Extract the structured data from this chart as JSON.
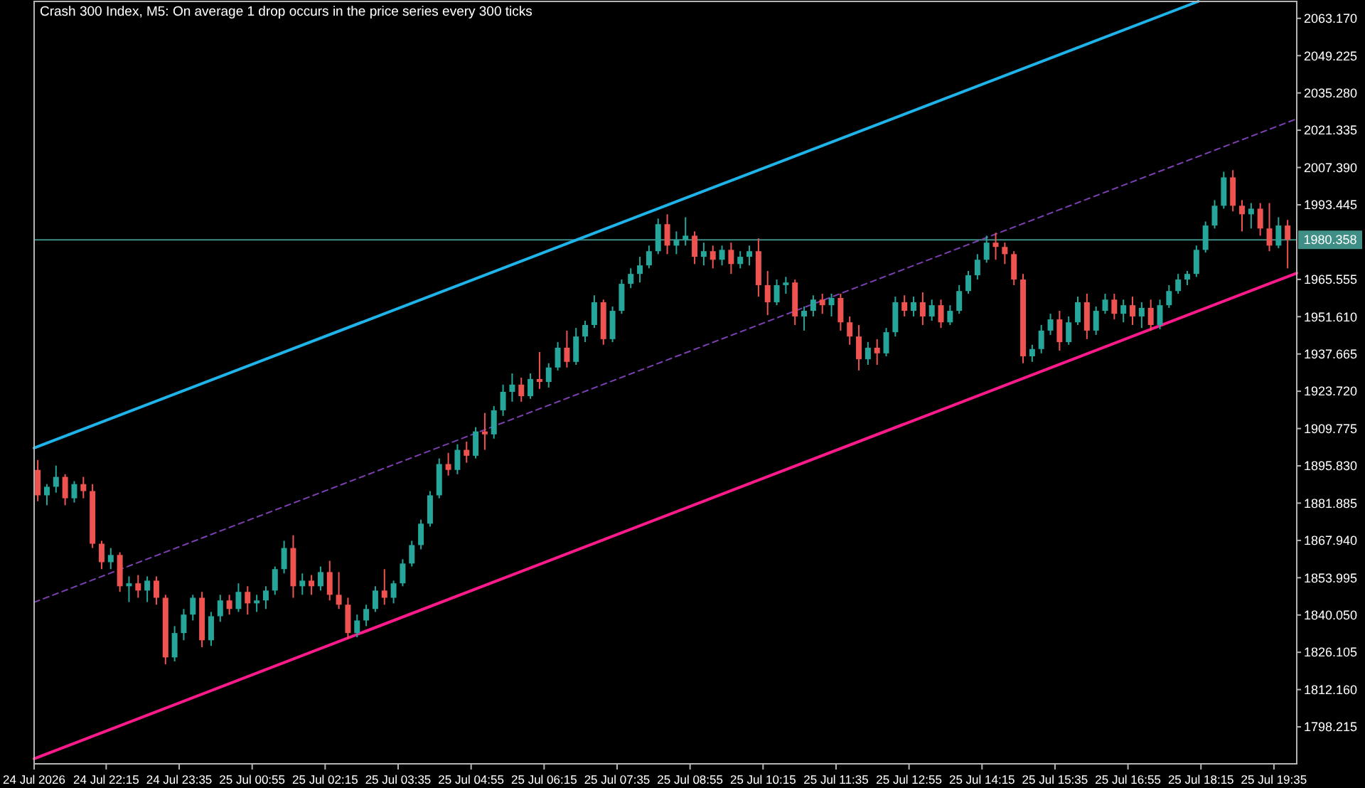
{
  "chart_data": {
    "type": "candlestick",
    "title": "Crash 300 Index, M5: On average 1 drop occurs in the price series every 300 ticks",
    "x": [
      "2026-07-24T21:00",
      "2026-07-24T21:10",
      "2026-07-24T21:20",
      "2026-07-24T21:30",
      "2026-07-24T21:40",
      "2026-07-24T21:50",
      "2026-07-24T22:00",
      "2026-07-24T22:10",
      "2026-07-24T22:20",
      "2026-07-24T22:30",
      "2026-07-24T22:40",
      "2026-07-24T22:50",
      "2026-07-24T23:00",
      "2026-07-24T23:10",
      "2026-07-24T23:20",
      "2026-07-24T23:30",
      "2026-07-24T23:40",
      "2026-07-24T23:50",
      "2026-07-25T00:00",
      "2026-07-25T00:10",
      "2026-07-25T00:20",
      "2026-07-25T00:30",
      "2026-07-25T00:40",
      "2026-07-25T00:50",
      "2026-07-25T01:00",
      "2026-07-25T01:10",
      "2026-07-25T01:20",
      "2026-07-25T01:30",
      "2026-07-25T01:40",
      "2026-07-25T01:50",
      "2026-07-25T02:00",
      "2026-07-25T02:10",
      "2026-07-25T02:20",
      "2026-07-25T02:30",
      "2026-07-25T02:40",
      "2026-07-25T02:50",
      "2026-07-25T03:00",
      "2026-07-25T03:10",
      "2026-07-25T03:20",
      "2026-07-25T03:30",
      "2026-07-25T03:40",
      "2026-07-25T03:50",
      "2026-07-25T04:00",
      "2026-07-25T04:10",
      "2026-07-25T04:20",
      "2026-07-25T04:30",
      "2026-07-25T04:40",
      "2026-07-25T04:50",
      "2026-07-25T05:00",
      "2026-07-25T05:10",
      "2026-07-25T05:20",
      "2026-07-25T05:30",
      "2026-07-25T05:40",
      "2026-07-25T05:50",
      "2026-07-25T06:00",
      "2026-07-25T06:10",
      "2026-07-25T06:20",
      "2026-07-25T06:30",
      "2026-07-25T06:40",
      "2026-07-25T06:50",
      "2026-07-25T07:00",
      "2026-07-25T07:10",
      "2026-07-25T07:20",
      "2026-07-25T07:30",
      "2026-07-25T07:40",
      "2026-07-25T07:50",
      "2026-07-25T08:00",
      "2026-07-25T08:10",
      "2026-07-25T08:20",
      "2026-07-25T08:30",
      "2026-07-25T08:40",
      "2026-07-25T08:50",
      "2026-07-25T09:00",
      "2026-07-25T09:10",
      "2026-07-25T09:20",
      "2026-07-25T09:30",
      "2026-07-25T09:40",
      "2026-07-25T09:50",
      "2026-07-25T10:00",
      "2026-07-25T10:10",
      "2026-07-25T10:20",
      "2026-07-25T10:30",
      "2026-07-25T10:40",
      "2026-07-25T10:50",
      "2026-07-25T11:00",
      "2026-07-25T11:10",
      "2026-07-25T11:20",
      "2026-07-25T11:30",
      "2026-07-25T11:40",
      "2026-07-25T11:50",
      "2026-07-25T12:00",
      "2026-07-25T12:10",
      "2026-07-25T12:20",
      "2026-07-25T12:30",
      "2026-07-25T12:40",
      "2026-07-25T12:50",
      "2026-07-25T13:00",
      "2026-07-25T13:10",
      "2026-07-25T13:20",
      "2026-07-25T13:30",
      "2026-07-25T13:40",
      "2026-07-25T13:50",
      "2026-07-25T14:00",
      "2026-07-25T14:10",
      "2026-07-25T14:20",
      "2026-07-25T14:30",
      "2026-07-25T14:40",
      "2026-07-25T14:50",
      "2026-07-25T15:00",
      "2026-07-25T15:10",
      "2026-07-25T15:20",
      "2026-07-25T15:30",
      "2026-07-25T15:40",
      "2026-07-25T15:50",
      "2026-07-25T16:00",
      "2026-07-25T16:10",
      "2026-07-25T16:20",
      "2026-07-25T16:30",
      "2026-07-25T16:40",
      "2026-07-25T16:50",
      "2026-07-25T17:00",
      "2026-07-25T17:10",
      "2026-07-25T17:20",
      "2026-07-25T17:30",
      "2026-07-25T17:40",
      "2026-07-25T17:50",
      "2026-07-25T18:00",
      "2026-07-25T18:10",
      "2026-07-25T18:20",
      "2026-07-25T18:30",
      "2026-07-25T18:40",
      "2026-07-25T18:50",
      "2026-07-25T19:00",
      "2026-07-25T19:10",
      "2026-07-25T19:20",
      "2026-07-25T19:30",
      "2026-07-25T19:40",
      "2026-07-25T19:50"
    ],
    "ohlc": [
      [
        1894.3,
        1898.0,
        1882.6,
        1884.8
      ],
      [
        1884.8,
        1889.0,
        1881.1,
        1888.0
      ],
      [
        1888.0,
        1895.9,
        1885.8,
        1891.7
      ],
      [
        1891.7,
        1892.7,
        1881.1,
        1883.7
      ],
      [
        1883.7,
        1890.1,
        1882.1,
        1889.0
      ],
      [
        1889.0,
        1891.7,
        1883.7,
        1886.4
      ],
      [
        1886.4,
        1889.0,
        1865.1,
        1866.7
      ],
      [
        1866.7,
        1867.8,
        1857.2,
        1859.8
      ],
      [
        1859.8,
        1865.1,
        1857.2,
        1862.5
      ],
      [
        1862.5,
        1863.5,
        1848.7,
        1850.8
      ],
      [
        1850.8,
        1854.5,
        1844.9,
        1851.9
      ],
      [
        1851.9,
        1855.0,
        1846.5,
        1849.2
      ],
      [
        1849.2,
        1854.5,
        1844.9,
        1852.9
      ],
      [
        1852.9,
        1854.5,
        1843.9,
        1846.5
      ],
      [
        1846.5,
        1847.6,
        1821.6,
        1824.2
      ],
      [
        1824.2,
        1835.9,
        1822.7,
        1833.3
      ],
      [
        1833.3,
        1842.3,
        1830.6,
        1840.2
      ],
      [
        1840.2,
        1847.6,
        1838.0,
        1846.5
      ],
      [
        1846.5,
        1848.7,
        1828.0,
        1830.6
      ],
      [
        1830.6,
        1841.2,
        1828.5,
        1839.6
      ],
      [
        1839.6,
        1847.6,
        1837.5,
        1845.5
      ],
      [
        1845.5,
        1847.6,
        1840.2,
        1842.3
      ],
      [
        1842.3,
        1851.9,
        1841.2,
        1848.7
      ],
      [
        1848.7,
        1850.8,
        1840.2,
        1844.4
      ],
      [
        1844.4,
        1847.6,
        1841.2,
        1845.5
      ],
      [
        1845.5,
        1850.8,
        1842.3,
        1849.2
      ],
      [
        1849.2,
        1858.2,
        1847.6,
        1857.2
      ],
      [
        1857.2,
        1867.8,
        1855.6,
        1865.1
      ],
      [
        1865.1,
        1869.9,
        1846.5,
        1850.8
      ],
      [
        1850.8,
        1855.6,
        1847.6,
        1852.9
      ],
      [
        1852.9,
        1855.0,
        1847.6,
        1850.8
      ],
      [
        1850.8,
        1858.2,
        1849.2,
        1856.1
      ],
      [
        1856.1,
        1860.3,
        1845.5,
        1847.6
      ],
      [
        1847.6,
        1856.1,
        1842.3,
        1843.9
      ],
      [
        1843.9,
        1846.5,
        1831.1,
        1833.3
      ],
      [
        1833.3,
        1840.2,
        1831.7,
        1838.0
      ],
      [
        1838.0,
        1843.9,
        1835.9,
        1842.3
      ],
      [
        1842.3,
        1850.8,
        1841.2,
        1849.2
      ],
      [
        1849.2,
        1857.2,
        1843.9,
        1846.5
      ],
      [
        1846.5,
        1852.9,
        1844.4,
        1851.9
      ],
      [
        1851.9,
        1860.9,
        1850.8,
        1859.3
      ],
      [
        1859.3,
        1867.8,
        1858.2,
        1866.2
      ],
      [
        1866.2,
        1875.7,
        1864.6,
        1874.2
      ],
      [
        1874.2,
        1886.4,
        1873.1,
        1884.8
      ],
      [
        1884.8,
        1898.6,
        1883.7,
        1896.5
      ],
      [
        1896.5,
        1900.7,
        1892.2,
        1894.3
      ],
      [
        1894.3,
        1903.9,
        1892.7,
        1901.8
      ],
      [
        1901.8,
        1904.9,
        1897.0,
        1899.6
      ],
      [
        1899.6,
        1910.3,
        1898.6,
        1908.7
      ],
      [
        1908.7,
        1915.6,
        1901.8,
        1907.6
      ],
      [
        1907.6,
        1918.2,
        1906.0,
        1916.6
      ],
      [
        1916.6,
        1926.2,
        1914.5,
        1923.5
      ],
      [
        1923.5,
        1930.4,
        1919.8,
        1926.2
      ],
      [
        1926.2,
        1928.8,
        1919.8,
        1921.9
      ],
      [
        1921.9,
        1930.4,
        1920.9,
        1928.3
      ],
      [
        1928.3,
        1938.4,
        1924.6,
        1927.2
      ],
      [
        1927.2,
        1934.2,
        1925.1,
        1932.6
      ],
      [
        1932.6,
        1942.1,
        1931.5,
        1940.0
      ],
      [
        1940.0,
        1946.4,
        1932.6,
        1934.7
      ],
      [
        1934.7,
        1947.4,
        1933.6,
        1944.2
      ],
      [
        1944.2,
        1950.1,
        1942.1,
        1948.5
      ],
      [
        1948.5,
        1959.6,
        1947.4,
        1957.0
      ],
      [
        1957.0,
        1958.0,
        1941.1,
        1943.2
      ],
      [
        1943.2,
        1955.4,
        1942.1,
        1953.8
      ],
      [
        1953.8,
        1965.5,
        1952.7,
        1963.9
      ],
      [
        1963.9,
        1969.7,
        1962.3,
        1967.6
      ],
      [
        1967.6,
        1974.0,
        1964.4,
        1970.8
      ],
      [
        1970.8,
        1978.2,
        1969.7,
        1976.1
      ],
      [
        1976.1,
        1988.3,
        1975.0,
        1986.2
      ],
      [
        1986.2,
        1989.9,
        1975.0,
        1978.2
      ],
      [
        1978.2,
        1983.5,
        1975.0,
        1980.3
      ],
      [
        1980.3,
        1988.8,
        1978.2,
        1981.9
      ],
      [
        1981.9,
        1983.5,
        1971.3,
        1974.0
      ],
      [
        1974.0,
        1979.3,
        1970.8,
        1976.1
      ],
      [
        1976.1,
        1978.2,
        1969.7,
        1972.9
      ],
      [
        1972.9,
        1978.2,
        1970.8,
        1976.6
      ],
      [
        1976.6,
        1979.3,
        1967.6,
        1971.3
      ],
      [
        1971.3,
        1976.1,
        1969.7,
        1974.0
      ],
      [
        1974.0,
        1978.2,
        1970.8,
        1976.1
      ],
      [
        1976.1,
        1980.9,
        1959.1,
        1963.4
      ],
      [
        1963.4,
        1968.7,
        1952.2,
        1957.0
      ],
      [
        1957.0,
        1965.5,
        1955.9,
        1963.4
      ],
      [
        1963.4,
        1966.5,
        1960.2,
        1964.4
      ],
      [
        1964.4,
        1965.5,
        1948.5,
        1951.7
      ],
      [
        1951.7,
        1955.4,
        1946.4,
        1953.8
      ],
      [
        1953.8,
        1959.6,
        1951.7,
        1958.0
      ],
      [
        1958.0,
        1960.2,
        1952.7,
        1955.9
      ],
      [
        1955.9,
        1960.2,
        1951.7,
        1958.6
      ],
      [
        1958.6,
        1960.2,
        1946.4,
        1949.5
      ],
      [
        1949.5,
        1951.7,
        1941.1,
        1944.2
      ],
      [
        1944.2,
        1948.5,
        1931.5,
        1935.7
      ],
      [
        1935.7,
        1942.1,
        1933.6,
        1940.0
      ],
      [
        1940.0,
        1943.2,
        1933.6,
        1937.9
      ],
      [
        1937.9,
        1947.4,
        1936.8,
        1945.8
      ],
      [
        1945.8,
        1959.1,
        1944.2,
        1957.0
      ],
      [
        1957.0,
        1959.6,
        1951.7,
        1953.8
      ],
      [
        1953.8,
        1959.1,
        1951.7,
        1957.0
      ],
      [
        1957.0,
        1960.7,
        1948.5,
        1951.7
      ],
      [
        1951.7,
        1958.0,
        1950.1,
        1955.9
      ],
      [
        1955.9,
        1958.0,
        1947.4,
        1949.5
      ],
      [
        1949.5,
        1955.9,
        1948.5,
        1953.8
      ],
      [
        1953.8,
        1963.4,
        1952.7,
        1961.2
      ],
      [
        1961.2,
        1968.7,
        1960.2,
        1967.1
      ],
      [
        1967.1,
        1975.0,
        1965.5,
        1972.9
      ],
      [
        1972.9,
        1981.9,
        1971.8,
        1979.3
      ],
      [
        1979.3,
        1983.0,
        1972.9,
        1977.7
      ],
      [
        1977.7,
        1979.3,
        1971.3,
        1975.0
      ],
      [
        1975.0,
        1976.1,
        1963.4,
        1965.5
      ],
      [
        1965.5,
        1967.6,
        1934.2,
        1936.8
      ],
      [
        1936.8,
        1941.1,
        1934.7,
        1939.5
      ],
      [
        1939.5,
        1948.5,
        1937.9,
        1946.4
      ],
      [
        1946.4,
        1952.7,
        1944.8,
        1950.6
      ],
      [
        1950.6,
        1953.8,
        1938.9,
        1942.1
      ],
      [
        1942.1,
        1951.7,
        1941.1,
        1949.5
      ],
      [
        1949.5,
        1959.1,
        1948.5,
        1957.0
      ],
      [
        1957.0,
        1960.2,
        1943.2,
        1946.4
      ],
      [
        1946.4,
        1955.4,
        1944.8,
        1953.8
      ],
      [
        1953.8,
        1960.2,
        1952.7,
        1958.0
      ],
      [
        1958.0,
        1960.2,
        1950.6,
        1952.7
      ],
      [
        1952.7,
        1958.0,
        1949.5,
        1955.9
      ],
      [
        1955.9,
        1959.1,
        1948.5,
        1951.7
      ],
      [
        1951.7,
        1957.0,
        1947.4,
        1954.9
      ],
      [
        1954.9,
        1958.0,
        1946.4,
        1948.5
      ],
      [
        1948.5,
        1958.0,
        1946.9,
        1955.9
      ],
      [
        1955.9,
        1963.4,
        1954.9,
        1961.2
      ],
      [
        1961.2,
        1967.6,
        1960.2,
        1965.5
      ],
      [
        1965.5,
        1968.7,
        1963.4,
        1967.6
      ],
      [
        1967.6,
        1978.2,
        1966.5,
        1976.6
      ],
      [
        1976.6,
        1987.2,
        1975.6,
        1985.7
      ],
      [
        1985.7,
        1995.2,
        1984.6,
        1993.1
      ],
      [
        1993.1,
        2005.8,
        1992.0,
        2003.7
      ],
      [
        2003.7,
        2006.4,
        1991.0,
        1993.1
      ],
      [
        1993.1,
        1995.2,
        1983.5,
        1989.9
      ],
      [
        1989.9,
        1994.1,
        1984.6,
        1992.0
      ],
      [
        1992.0,
        1994.1,
        1981.9,
        1984.6
      ],
      [
        1984.6,
        1994.1,
        1976.1,
        1978.2
      ],
      [
        1978.2,
        1988.8,
        1977.2,
        1985.7
      ],
      [
        1985.7,
        1987.8,
        1969.7,
        1980.4
      ]
    ],
    "colors": [
      "#ef5350",
      "#26a69a",
      "#26a69a",
      "#ef5350",
      "#26a69a",
      "#ef5350",
      "#ef5350",
      "#ef5350",
      "#26a69a",
      "#ef5350",
      "#26a69a",
      "#ef5350",
      "#26a69a",
      "#ef5350",
      "#ef5350",
      "#26a69a",
      "#26a69a",
      "#26a69a",
      "#ef5350",
      "#26a69a",
      "#26a69a",
      "#ef5350",
      "#26a69a",
      "#ef5350",
      "#26a69a",
      "#26a69a",
      "#26a69a",
      "#26a69a",
      "#ef5350",
      "#26a69a",
      "#ef5350",
      "#26a69a",
      "#ef5350",
      "#ef5350",
      "#ef5350",
      "#26a69a",
      "#26a69a",
      "#26a69a",
      "#ef5350",
      "#26a69a",
      "#26a69a",
      "#26a69a",
      "#26a69a",
      "#26a69a",
      "#26a69a",
      "#ef5350",
      "#26a69a",
      "#ef5350",
      "#26a69a",
      "#ef5350",
      "#26a69a",
      "#26a69a",
      "#26a69a",
      "#ef5350",
      "#26a69a",
      "#ef5350",
      "#26a69a",
      "#26a69a",
      "#ef5350",
      "#26a69a",
      "#26a69a",
      "#26a69a",
      "#ef5350",
      "#26a69a",
      "#26a69a",
      "#26a69a",
      "#26a69a",
      "#26a69a",
      "#26a69a",
      "#ef5350",
      "#26a69a",
      "#26a69a",
      "#ef5350",
      "#26a69a",
      "#ef5350",
      "#26a69a",
      "#ef5350",
      "#26a69a",
      "#26a69a",
      "#ef5350",
      "#ef5350",
      "#26a69a",
      "#26a69a",
      "#ef5350",
      "#26a69a",
      "#26a69a",
      "#ef5350",
      "#26a69a",
      "#ef5350",
      "#ef5350",
      "#ef5350",
      "#26a69a",
      "#ef5350",
      "#26a69a",
      "#26a69a",
      "#ef5350",
      "#26a69a",
      "#ef5350",
      "#26a69a",
      "#ef5350",
      "#26a69a",
      "#26a69a",
      "#26a69a",
      "#26a69a",
      "#26a69a",
      "#ef5350",
      "#ef5350",
      "#ef5350",
      "#ef5350",
      "#26a69a",
      "#26a69a",
      "#26a69a",
      "#ef5350",
      "#26a69a",
      "#26a69a",
      "#ef5350",
      "#26a69a",
      "#26a69a",
      "#ef5350",
      "#26a69a",
      "#ef5350",
      "#26a69a",
      "#ef5350",
      "#26a69a",
      "#26a69a",
      "#26a69a",
      "#26a69a",
      "#26a69a",
      "#26a69a",
      "#26a69a",
      "#26a69a",
      "#ef5350",
      "#ef5350",
      "#26a69a",
      "#ef5350",
      "#ef5350",
      "#26a69a",
      "#ef5350"
    ],
    "series": [
      {
        "type": "line",
        "color": "#1eb4ea",
        "x": [
          "2026-07-24T20:56",
          "2026-07-25T18:12"
        ],
        "values": [
          1902.5,
          2069.5
        ]
      },
      {
        "type": "line",
        "color": "#7b3fb0",
        "line_style": "dashed",
        "x": [
          "2026-07-24T20:56",
          "2026-07-25T20:00"
        ],
        "values": [
          1844.8,
          2025.6
        ]
      },
      {
        "type": "line",
        "color": "#ff1a8c",
        "x": [
          "2026-07-24T20:56",
          "2026-07-25T20:00"
        ],
        "values": [
          1786.3,
          1967.9
        ]
      }
    ],
    "ref_lines": [
      {
        "axis": "y",
        "value": 1980.358,
        "label": "1980.358",
        "color": "#3f8f86"
      }
    ],
    "xlim": [
      "2026-07-24T20:56",
      "2026-07-25T20:00"
    ],
    "xticks": [
      {
        "value": "2026-07-24T20:56",
        "label": "24 Jul 2026"
      },
      {
        "value": "2026-07-24T22:15",
        "label": "24 Jul 22:15"
      },
      {
        "value": "2026-07-24T23:35",
        "label": "24 Jul 23:35"
      },
      {
        "value": "2026-07-25T00:55",
        "label": "25 Jul 00:55"
      },
      {
        "value": "2026-07-25T02:15",
        "label": "25 Jul 02:15"
      },
      {
        "value": "2026-07-25T03:35",
        "label": "25 Jul 03:35"
      },
      {
        "value": "2026-07-25T04:55",
        "label": "25 Jul 04:55"
      },
      {
        "value": "2026-07-25T06:15",
        "label": "25 Jul 06:15"
      },
      {
        "value": "2026-07-25T07:35",
        "label": "25 Jul 07:35"
      },
      {
        "value": "2026-07-25T08:55",
        "label": "25 Jul 08:55"
      },
      {
        "value": "2026-07-25T10:15",
        "label": "25 Jul 10:15"
      },
      {
        "value": "2026-07-25T11:35",
        "label": "25 Jul 11:35"
      },
      {
        "value": "2026-07-25T12:55",
        "label": "25 Jul 12:55"
      },
      {
        "value": "2026-07-25T14:15",
        "label": "25 Jul 14:15"
      },
      {
        "value": "2026-07-25T15:35",
        "label": "25 Jul 15:35"
      },
      {
        "value": "2026-07-25T16:55",
        "label": "25 Jul 16:55"
      },
      {
        "value": "2026-07-25T18:15",
        "label": "25 Jul 18:15"
      },
      {
        "value": "2026-07-25T19:35",
        "label": "25 Jul 19:35"
      }
    ],
    "ylim": [
      1784.4,
      2069.5
    ],
    "yticks": [
      {
        "value": 2063.17,
        "label": "2063.170"
      },
      {
        "value": 2049.225,
        "label": "2049.225"
      },
      {
        "value": 2035.28,
        "label": "2035.280"
      },
      {
        "value": 2021.335,
        "label": "2021.335"
      },
      {
        "value": 2007.39,
        "label": "2007.390"
      },
      {
        "value": 1993.445,
        "label": "1993.445"
      },
      {
        "value": 1965.555,
        "label": "1965.555"
      },
      {
        "value": 1951.61,
        "label": "1951.610"
      },
      {
        "value": 1937.665,
        "label": "1937.665"
      },
      {
        "value": 1923.72,
        "label": "1923.720"
      },
      {
        "value": 1909.775,
        "label": "1909.775"
      },
      {
        "value": 1895.83,
        "label": "1895.830"
      },
      {
        "value": 1881.885,
        "label": "1881.885"
      },
      {
        "value": 1867.94,
        "label": "1867.940"
      },
      {
        "value": 1853.995,
        "label": "1853.995"
      },
      {
        "value": 1840.05,
        "label": "1840.050"
      },
      {
        "value": 1826.105,
        "label": "1826.105"
      },
      {
        "value": 1812.16,
        "label": "1812.160"
      },
      {
        "value": 1798.215,
        "label": "1798.215"
      }
    ]
  }
}
